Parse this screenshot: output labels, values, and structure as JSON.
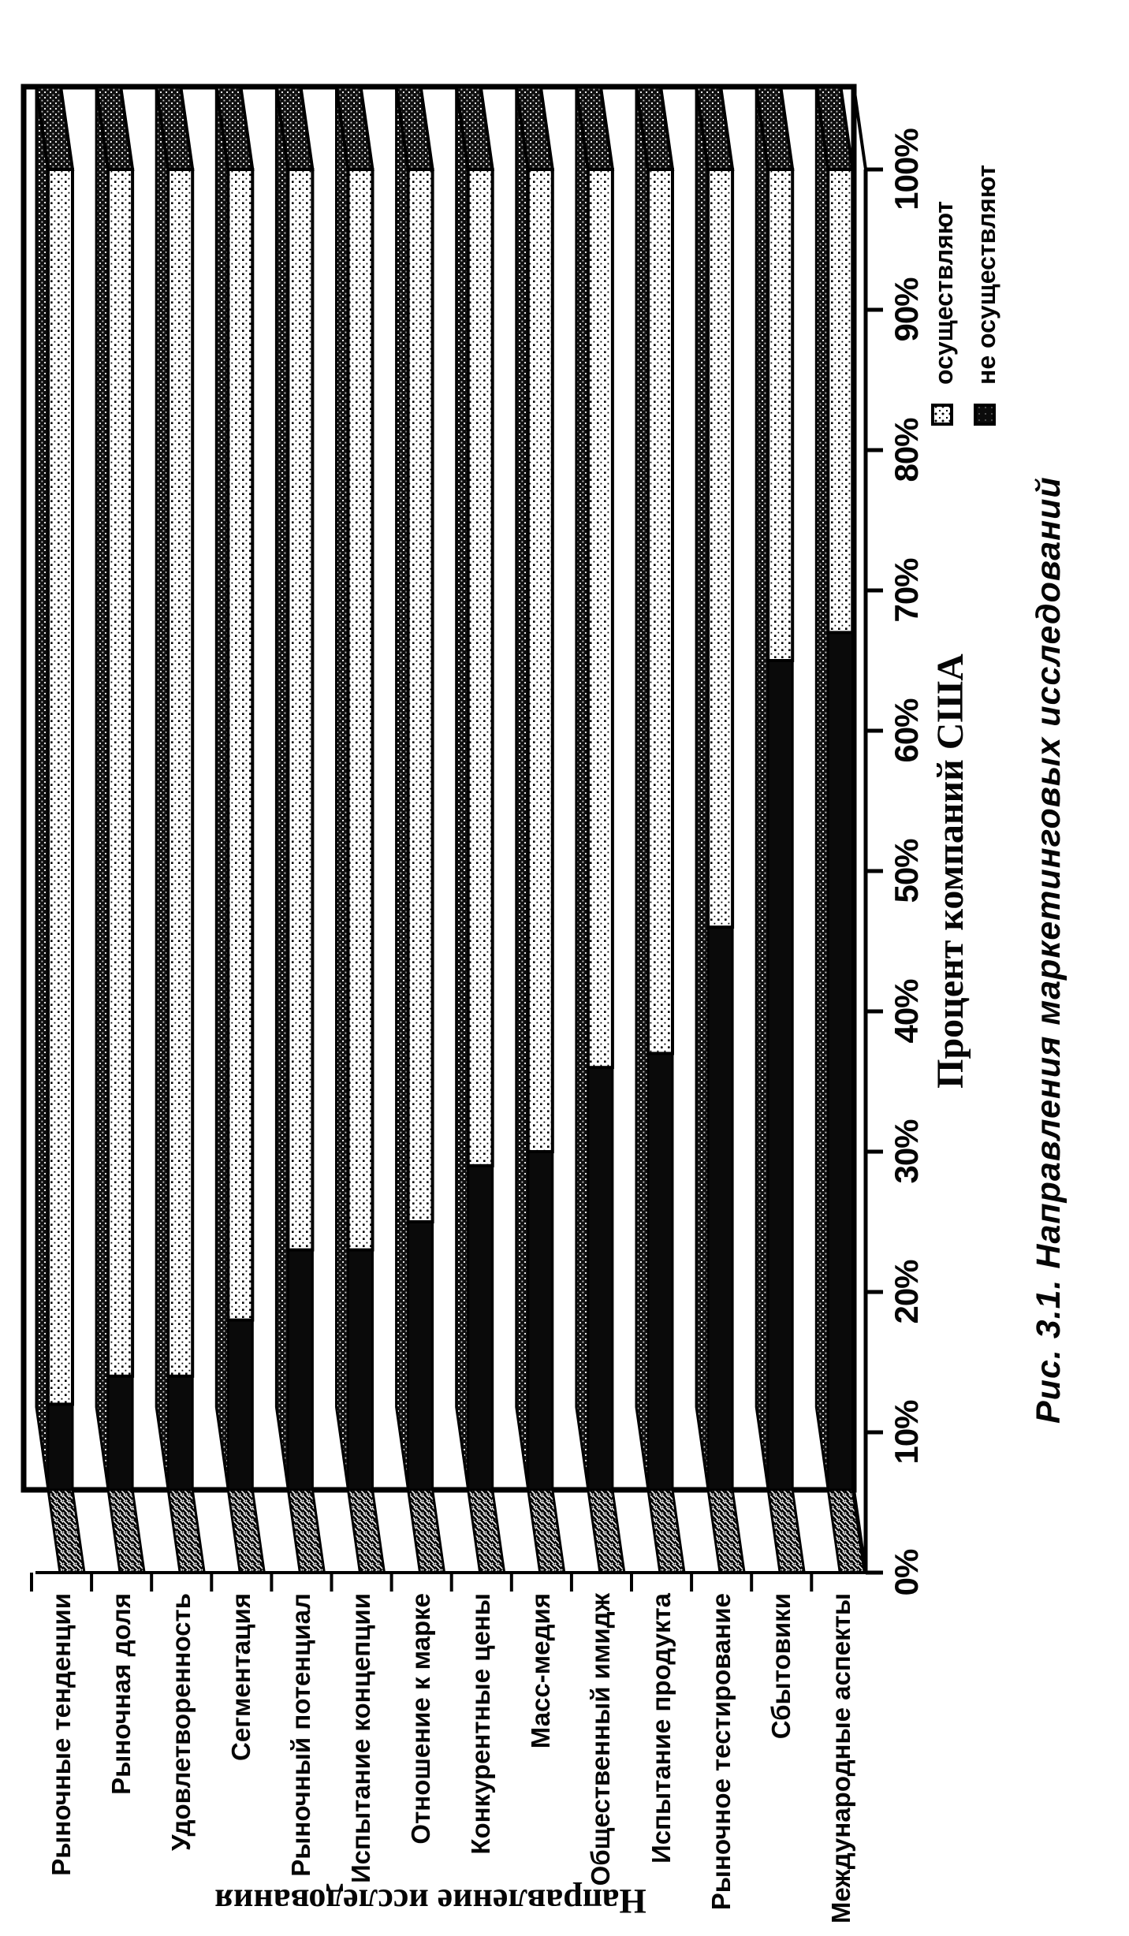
{
  "figure": {
    "caption": "Рис. 3.1. Направления маркетинговых исследований"
  },
  "chart_data": {
    "type": "bar",
    "variant": "3d-horizontal-stacked-100-percent",
    "title": "",
    "xlabel": "Процент компаний США",
    "ylabel": "Направление исследования",
    "categories": [
      "Рыночные тенденции",
      "Рыночная доля",
      "Удовлетворенность",
      "Сегментация",
      "Рыночный потенциал",
      "Испытание концепции",
      "Отношение к марке",
      "Конкурентные цены",
      "Масс-медия",
      "Общественный имидж",
      "Испытание продукта",
      "Рыночное тестирование",
      "Сбытовики",
      "Международные аспекты"
    ],
    "series": [
      {
        "name": "осуществляют",
        "values": [
          88,
          86,
          86,
          82,
          77,
          77,
          75,
          71,
          70,
          64,
          63,
          54,
          35,
          33
        ]
      },
      {
        "name": "не осуществляют",
        "values": [
          12,
          14,
          14,
          18,
          23,
          23,
          25,
          29,
          30,
          36,
          37,
          46,
          65,
          67
        ]
      }
    ],
    "x_ticks": [
      "0%",
      "10%",
      "20%",
      "30%",
      "40%",
      "50%",
      "60%",
      "70%",
      "80%",
      "90%",
      "100%"
    ],
    "xlim": [
      0,
      100
    ],
    "grid": false,
    "legend_position": "below-plot-right",
    "colors": {
      "ink": "#050505",
      "paper": "#ffffff",
      "series_do_fill": "white-with-black-dots",
      "series_not_fill": "solid-black"
    }
  }
}
